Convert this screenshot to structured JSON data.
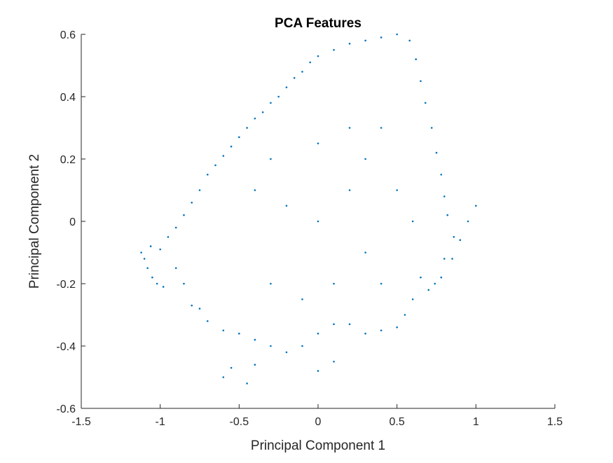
{
  "chart_data": {
    "type": "scatter",
    "title": "PCA Features",
    "xlabel": "Principal Component 1",
    "ylabel": "Principal Component 2",
    "xlim": [
      -1.5,
      1.5
    ],
    "ylim": [
      -0.6,
      0.6
    ],
    "xticks": [
      "-1.5",
      "-1",
      "-0.5",
      "0",
      "0.5",
      "1",
      "1.5"
    ],
    "yticks": [
      "-0.6",
      "-0.4",
      "-0.2",
      "0",
      "0.2",
      "0.4",
      "0.6"
    ],
    "grid": false,
    "marker_color": "#0072BD",
    "series": [
      {
        "values_note_free": true,
        "points": [
          [
            -1.12,
            -0.1
          ],
          [
            -1.1,
            -0.12
          ],
          [
            -1.08,
            -0.15
          ],
          [
            -1.05,
            -0.18
          ],
          [
            -1.02,
            -0.2
          ],
          [
            -0.98,
            -0.21
          ],
          [
            -1.06,
            -0.08
          ],
          [
            -1.0,
            -0.09
          ],
          [
            -0.95,
            -0.05
          ],
          [
            -0.9,
            -0.02
          ],
          [
            -0.85,
            0.02
          ],
          [
            -0.8,
            0.06
          ],
          [
            -0.75,
            0.1
          ],
          [
            -0.7,
            0.15
          ],
          [
            -0.65,
            0.18
          ],
          [
            -0.6,
            0.21
          ],
          [
            -0.55,
            0.24
          ],
          [
            -0.5,
            0.27
          ],
          [
            -0.45,
            0.3
          ],
          [
            -0.4,
            0.33
          ],
          [
            -0.35,
            0.35
          ],
          [
            -0.3,
            0.38
          ],
          [
            -0.25,
            0.4
          ],
          [
            -0.2,
            0.43
          ],
          [
            -0.15,
            0.46
          ],
          [
            -0.1,
            0.48
          ],
          [
            -0.05,
            0.51
          ],
          [
            0.0,
            0.53
          ],
          [
            0.1,
            0.55
          ],
          [
            0.2,
            0.57
          ],
          [
            0.3,
            0.58
          ],
          [
            0.4,
            0.59
          ],
          [
            0.5,
            0.6
          ],
          [
            0.58,
            0.58
          ],
          [
            0.62,
            0.52
          ],
          [
            0.65,
            0.45
          ],
          [
            0.68,
            0.38
          ],
          [
            0.72,
            0.3
          ],
          [
            0.75,
            0.22
          ],
          [
            0.78,
            0.15
          ],
          [
            0.8,
            0.08
          ],
          [
            0.82,
            0.02
          ],
          [
            0.86,
            -0.05
          ],
          [
            0.8,
            -0.12
          ],
          [
            0.74,
            -0.2
          ],
          [
            0.7,
            -0.22
          ],
          [
            0.65,
            -0.18
          ],
          [
            0.6,
            -0.25
          ],
          [
            0.55,
            -0.3
          ],
          [
            0.5,
            -0.34
          ],
          [
            0.4,
            -0.35
          ],
          [
            0.3,
            -0.36
          ],
          [
            0.2,
            -0.33
          ],
          [
            0.1,
            -0.33
          ],
          [
            0.0,
            -0.36
          ],
          [
            -0.1,
            -0.4
          ],
          [
            -0.2,
            -0.42
          ],
          [
            -0.3,
            -0.4
          ],
          [
            -0.4,
            -0.38
          ],
          [
            -0.5,
            -0.36
          ],
          [
            -0.6,
            -0.35
          ],
          [
            -0.7,
            -0.32
          ],
          [
            -0.75,
            -0.28
          ],
          [
            -0.8,
            -0.27
          ],
          [
            -0.85,
            -0.2
          ],
          [
            -0.9,
            -0.15
          ],
          [
            -0.6,
            -0.5
          ],
          [
            -0.55,
            -0.47
          ],
          [
            -0.45,
            -0.52
          ],
          [
            -0.4,
            -0.46
          ],
          [
            0.1,
            -0.45
          ],
          [
            0.0,
            -0.48
          ],
          [
            0.3,
            0.2
          ],
          [
            0.4,
            0.3
          ],
          [
            0.2,
            0.1
          ],
          [
            0.0,
            0.0
          ],
          [
            -0.2,
            0.05
          ],
          [
            -0.4,
            0.1
          ],
          [
            0.3,
            -0.1
          ],
          [
            0.5,
            0.1
          ],
          [
            0.1,
            -0.2
          ],
          [
            -0.1,
            -0.25
          ],
          [
            -0.3,
            -0.2
          ],
          [
            0.4,
            -0.2
          ],
          [
            0.6,
            0.0
          ],
          [
            0.2,
            0.3
          ],
          [
            0.0,
            0.25
          ],
          [
            -0.3,
            0.2
          ],
          [
            1.0,
            0.05
          ],
          [
            0.95,
            0.0
          ],
          [
            0.9,
            -0.06
          ],
          [
            0.85,
            -0.12
          ],
          [
            0.78,
            -0.18
          ]
        ]
      }
    ]
  }
}
